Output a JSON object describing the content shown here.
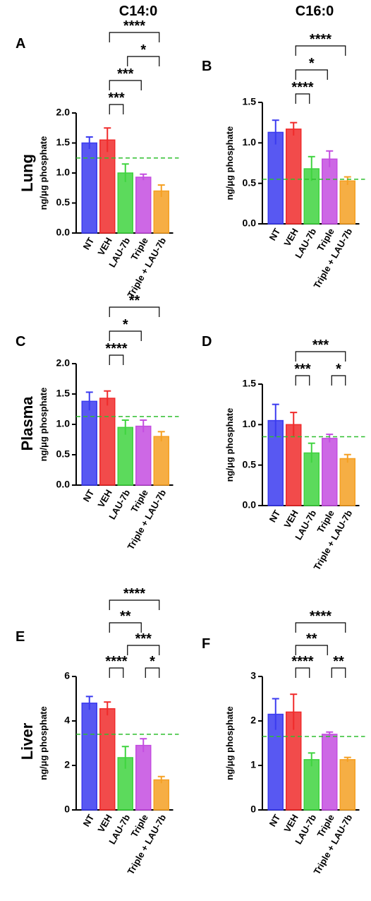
{
  "column_titles": [
    "C14:0",
    "C16:0"
  ],
  "row_labels": [
    "Lung",
    "Plasma",
    "Liver"
  ],
  "chart_data": [
    {
      "type": "bar",
      "panel_label": "A",
      "y_label": "ng/μg phosphate",
      "categories": [
        "NT",
        "VEH",
        "LAU-7b",
        "Triple",
        "Triple + LAU-7b"
      ],
      "colors": [
        "#3b3bf0",
        "#f02b2b",
        "#3fd43f",
        "#c44de0",
        "#f5a023"
      ],
      "values": [
        1.5,
        1.55,
        1.0,
        0.93,
        0.7
      ],
      "errors": [
        0.1,
        0.2,
        0.15,
        0.05,
        0.1
      ],
      "reference_line": 1.25,
      "reference_color": "#2fbf2f",
      "ylim": [
        0,
        2
      ],
      "yticks": [
        {
          "value": 0,
          "label": "0.0"
        },
        0.5,
        {
          "value": 1,
          "label": "1.0"
        },
        1.5,
        {
          "value": 2,
          "label": "2.0"
        }
      ],
      "brackets": [
        {
          "from": 1,
          "to": 4,
          "label": "****"
        },
        {
          "from": 1,
          "to": 3,
          "label": "***"
        },
        {
          "from": 1,
          "to": 2,
          "label": "***"
        },
        {
          "from": 2,
          "to": 4,
          "label": "*"
        }
      ]
    },
    {
      "type": "bar",
      "panel_label": "B",
      "y_label": "ng/μg phosphate",
      "categories": [
        "NT",
        "VEH",
        "LAU-7b",
        "Triple",
        "Triple + LAU-7b"
      ],
      "colors": [
        "#3b3bf0",
        "#f02b2b",
        "#3fd43f",
        "#c44de0",
        "#f5a023"
      ],
      "values": [
        1.13,
        1.17,
        0.68,
        0.8,
        0.53
      ],
      "errors": [
        0.15,
        0.08,
        0.15,
        0.1,
        0.05
      ],
      "reference_line": 0.55,
      "reference_color": "#2fbf2f",
      "ylim": [
        0,
        1.5
      ],
      "yticks": [
        {
          "value": 0,
          "label": "0.0"
        },
        0.5,
        {
          "value": 1,
          "label": "1.0"
        },
        1.5
      ],
      "brackets": [
        {
          "from": 1,
          "to": 4,
          "label": "****"
        },
        {
          "from": 1,
          "to": 3,
          "label": "*"
        },
        {
          "from": 1,
          "to": 2,
          "label": "****"
        }
      ]
    },
    {
      "type": "bar",
      "panel_label": "C",
      "y_label": "ng/μg phosphate",
      "categories": [
        "NT",
        "VEH",
        "LAU-7b",
        "Triple",
        "Triple + LAU-7b"
      ],
      "colors": [
        "#3b3bf0",
        "#f02b2b",
        "#3fd43f",
        "#c44de0",
        "#f5a023"
      ],
      "values": [
        1.38,
        1.43,
        0.95,
        0.97,
        0.8
      ],
      "errors": [
        0.15,
        0.12,
        0.12,
        0.1,
        0.08
      ],
      "reference_line": 1.13,
      "reference_color": "#2fbf2f",
      "ylim": [
        0,
        2
      ],
      "yticks": [
        {
          "value": 0,
          "label": "0.0"
        },
        0.5,
        {
          "value": 1,
          "label": "1.0"
        },
        1.5,
        {
          "value": 2,
          "label": "2.0"
        }
      ],
      "brackets": [
        {
          "from": 1,
          "to": 4,
          "label": "**"
        },
        {
          "from": 1,
          "to": 3,
          "label": "*"
        },
        {
          "from": 1,
          "to": 2,
          "label": "****"
        }
      ]
    },
    {
      "type": "bar",
      "panel_label": "D",
      "y_label": "ng/μg phosphate",
      "categories": [
        "NT",
        "VEH",
        "LAU-7b",
        "Triple",
        "Triple + LAU-7b"
      ],
      "colors": [
        "#3b3bf0",
        "#f02b2b",
        "#3fd43f",
        "#c44de0",
        "#f5a023"
      ],
      "values": [
        1.05,
        1.0,
        0.65,
        0.83,
        0.58
      ],
      "errors": [
        0.2,
        0.15,
        0.12,
        0.05,
        0.05
      ],
      "reference_line": 0.85,
      "reference_color": "#2fbf2f",
      "ylim": [
        0,
        1.5
      ],
      "yticks": [
        {
          "value": 0,
          "label": "0.0"
        },
        0.5,
        {
          "value": 1,
          "label": "1.0"
        },
        1.5
      ],
      "brackets": [
        {
          "from": 1,
          "to": 4,
          "label": "***"
        },
        {
          "from": 1,
          "to": 2,
          "label": "***"
        },
        {
          "from": 3,
          "to": 4,
          "label": "*"
        }
      ]
    },
    {
      "type": "bar",
      "panel_label": "E",
      "y_label": "ng/μg phosphate",
      "categories": [
        "NT",
        "VEH",
        "LAU-7b",
        "Triple",
        "Triple + LAU-7b"
      ],
      "colors": [
        "#3b3bf0",
        "#f02b2b",
        "#3fd43f",
        "#c44de0",
        "#f5a023"
      ],
      "values": [
        4.8,
        4.55,
        2.35,
        2.9,
        1.35
      ],
      "errors": [
        0.3,
        0.3,
        0.5,
        0.3,
        0.15
      ],
      "reference_line": 3.4,
      "reference_color": "#2fbf2f",
      "ylim": [
        0,
        6
      ],
      "yticks": [
        0,
        2,
        4,
        6
      ],
      "brackets": [
        {
          "from": 1,
          "to": 4,
          "label": "****"
        },
        {
          "from": 2,
          "to": 4,
          "label": "***"
        },
        {
          "from": 1,
          "to": 3,
          "label": "**"
        },
        {
          "from": 1,
          "to": 2,
          "label": "****"
        },
        {
          "from": 3,
          "to": 4,
          "label": "*"
        }
      ]
    },
    {
      "type": "bar",
      "panel_label": "F",
      "y_label": "ng/μg phosphate",
      "categories": [
        "NT",
        "VEH",
        "LAU-7b",
        "Triple",
        "Triple + LAU-7b"
      ],
      "colors": [
        "#3b3bf0",
        "#f02b2b",
        "#3fd43f",
        "#c44de0",
        "#f5a023"
      ],
      "values": [
        2.15,
        2.2,
        1.13,
        1.7,
        1.13
      ],
      "errors": [
        0.35,
        0.4,
        0.15,
        0.05,
        0.05
      ],
      "reference_line": 1.65,
      "reference_color": "#2fbf2f",
      "ylim": [
        0,
        3
      ],
      "yticks": [
        0,
        1,
        2,
        3
      ],
      "brackets": [
        {
          "from": 1,
          "to": 4,
          "label": "****"
        },
        {
          "from": 1,
          "to": 3,
          "label": "**"
        },
        {
          "from": 1,
          "to": 2,
          "label": "****"
        },
        {
          "from": 3,
          "to": 4,
          "label": "**"
        }
      ]
    }
  ]
}
